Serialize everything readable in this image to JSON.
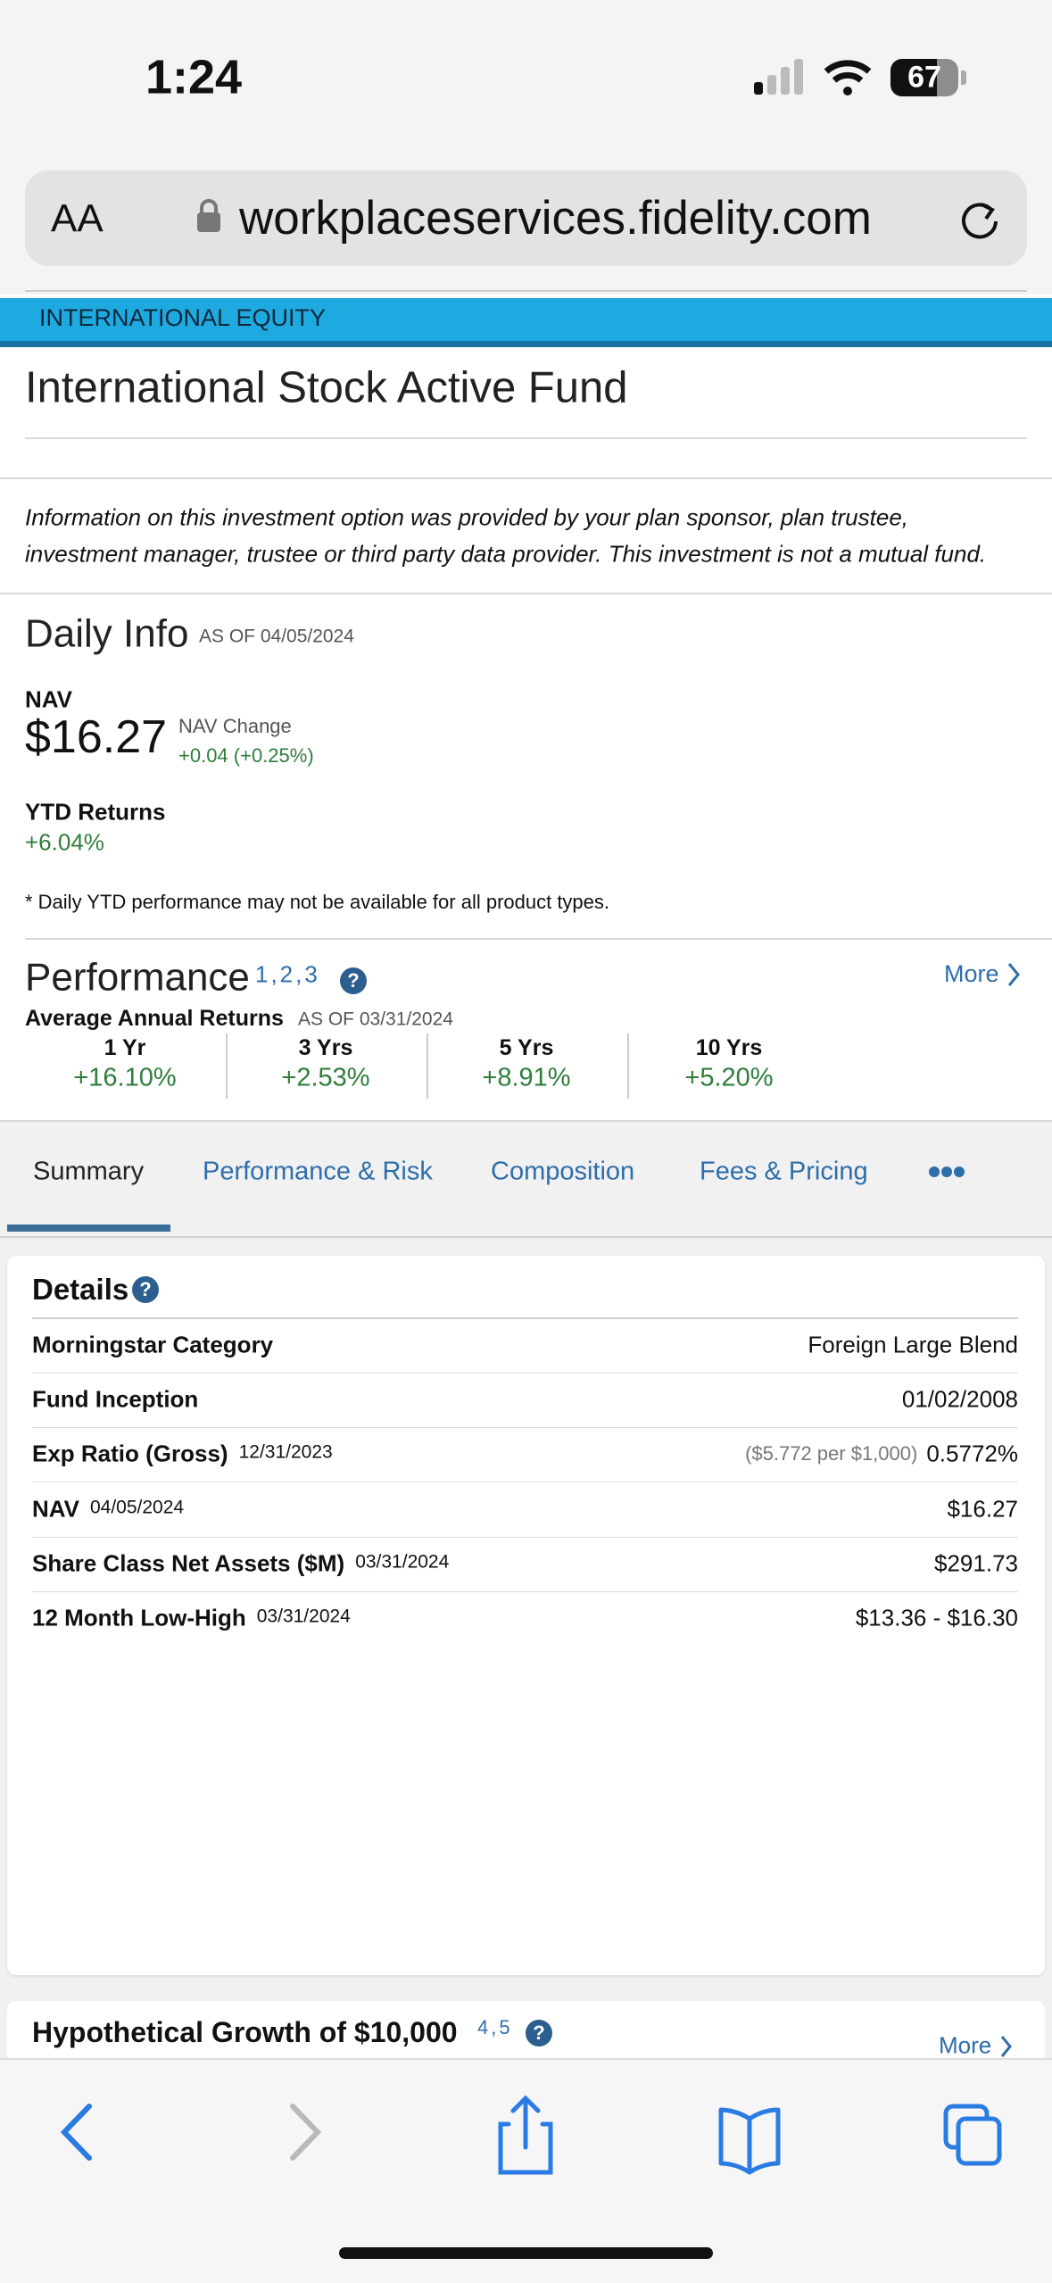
{
  "status": {
    "time": "1:24",
    "battery": "67"
  },
  "browser": {
    "text_size": "AA",
    "url": "workplaceservices.fidelity.com"
  },
  "fund": {
    "category": "INTERNATIONAL EQUITY",
    "name": "International Stock Active Fund",
    "disclaimer": [
      "Information on this investment option was provided by your plan sponsor, plan trustee,",
      "investment manager, trustee or third party data provider. This investment is not a mutual fund."
    ]
  },
  "daily_info": {
    "title": "Daily Info",
    "as_of": "AS OF 04/05/2024",
    "nav_label": "NAV",
    "nav": "$16.27",
    "nav_change_label": "NAV Change",
    "nav_change": "+0.04 (+0.25%)",
    "ytd_label": "YTD Returns",
    "ytd": "+6.04%",
    "footnote": "* Daily YTD performance may not be available for all product types."
  },
  "performance": {
    "title": "Performance",
    "footnotes": "1,2,3",
    "more": "More",
    "subtitle": "Average Annual Returns",
    "as_of": "AS OF 03/31/2024",
    "columns": [
      {
        "period": "1 Yr",
        "value": "+16.10%"
      },
      {
        "period": "3 Yrs",
        "value": "+2.53%"
      },
      {
        "period": "5 Yrs",
        "value": "+8.91%"
      },
      {
        "period": "10 Yrs",
        "value": "+5.20%"
      }
    ]
  },
  "tabs": [
    "Summary",
    "Performance & Risk",
    "Composition",
    "Fees & Pricing"
  ],
  "details": {
    "title": "Details",
    "rows": [
      {
        "label": "Morningstar Category",
        "value": "Foreign Large Blend"
      },
      {
        "label": "Fund Inception",
        "value": "01/02/2008"
      },
      {
        "label": "Exp Ratio (Gross)",
        "date": "12/31/2023",
        "note": "($5.772 per $1,000)",
        "value": "0.5772%"
      },
      {
        "label": "NAV",
        "date": "04/05/2024",
        "value": "$16.27"
      },
      {
        "label": "Share Class Net Assets ($M)",
        "date": "03/31/2024",
        "value": "$291.73"
      },
      {
        "label": "12 Month Low-High",
        "date": "03/31/2024",
        "value": "$13.36 - $16.30"
      }
    ]
  },
  "hypothetical": {
    "title": "Hypothetical Growth of $10,000",
    "footnotes": "4,5",
    "more": "More"
  }
}
